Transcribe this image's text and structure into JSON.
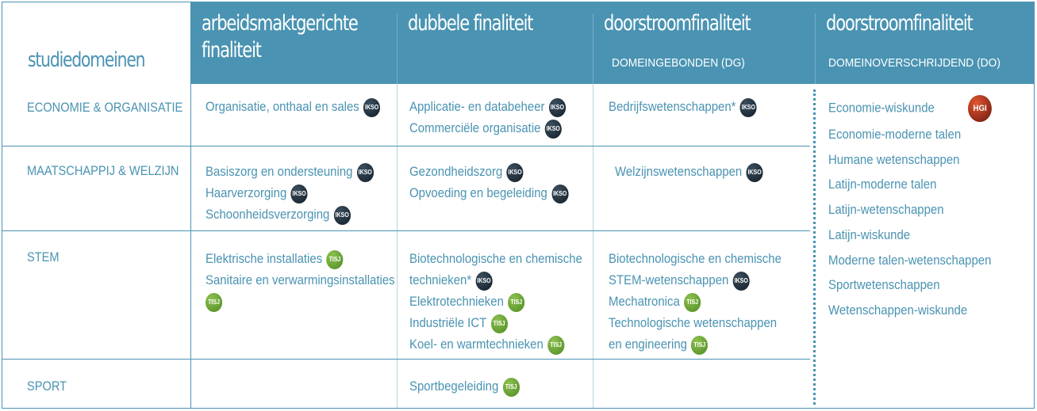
{
  "colors": {
    "primary": "#4a93b2",
    "badge_ikso": "#0f1c26",
    "badge_tisj": "#5f9b2b",
    "badge_hgi": "#b33019"
  },
  "header": {
    "corner": "studiedomeinen",
    "col1": {
      "line1": "arbeidsmaktgerichte",
      "line2": "finaliteit"
    },
    "col2": {
      "title": "dubbele finaliteit"
    },
    "col3": {
      "title": "doorstroomfinaliteit",
      "sub": "DOMEINGEBONDEN (DG)"
    },
    "col4": {
      "title": "doorstroomfinaliteit",
      "sub": "DOMEINOVERSCHRIJDEND (DO)"
    }
  },
  "badges": {
    "ikso": "IKSO",
    "tisj": "TISJ",
    "hgi": "HGI"
  },
  "rows": {
    "economie": {
      "domain": "ECONOMIE & ORGANISATIE",
      "c1": [
        "Organisatie, onthaal en sales"
      ],
      "c2": [
        "Applicatie- en databeheer",
        "Commerciële organisatie"
      ],
      "c3": [
        "Bedrijfswetenschappen*"
      ]
    },
    "maatschappij": {
      "domain": "MAATSCHAPPIJ & WELZIJN",
      "c1": [
        "Basiszorg en ondersteuning",
        "Haarverzorging",
        "Schoonheidsverzorging"
      ],
      "c2": [
        "Gezondheidszorg",
        "Opvoeding en begeleiding"
      ],
      "c3": [
        "Welzijnswetenschappen"
      ]
    },
    "stem": {
      "domain": "STEM",
      "c1": [
        "Elektrische installaties",
        "Sanitaire en verwarmingsinstallaties"
      ],
      "c2": [
        "Biotechnologische en chemische",
        "technieken*",
        "Elektrotechnieken",
        "Industriële ICT",
        "Koel- en warmtechnieken"
      ],
      "c3": [
        "Biotechnologische en chemische",
        "STEM-wetenschappen",
        "Mechatronica",
        "Technologische wetenschappen",
        "en engineering"
      ]
    },
    "sport": {
      "domain": "SPORT",
      "c2": [
        "Sportbegeleiding"
      ]
    }
  },
  "do_list": [
    "Economie-wiskunde",
    "Economie-moderne talen",
    "Humane wetenschappen",
    "Latijn-moderne talen",
    "Latijn-wetenschappen",
    "Latijn-wiskunde",
    "Moderne talen-wetenschappen",
    "Sportwetenschappen",
    "Wetenschappen-wiskunde"
  ]
}
